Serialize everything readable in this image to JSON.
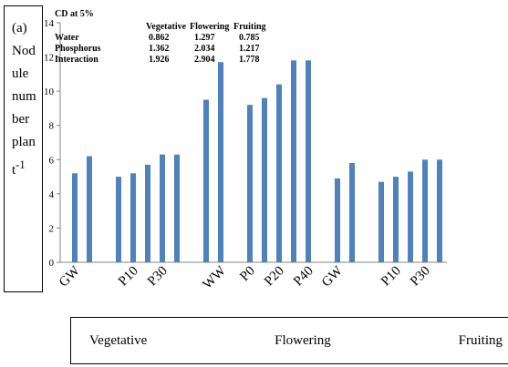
{
  "chart_data": {
    "type": "bar",
    "y_label": "(a) Nodule number plant",
    "y_label_sup": "-1",
    "categories": [
      "GW",
      null,
      null,
      null,
      "P10",
      null,
      "P30",
      null,
      null,
      null,
      "WW",
      null,
      "P0",
      null,
      "P20",
      null,
      "P40",
      null,
      "GW",
      null,
      null,
      null,
      "P10",
      null,
      "P30",
      null
    ],
    "values": [
      5.2,
      6.2,
      null,
      5.0,
      5.2,
      5.7,
      6.3,
      6.3,
      null,
      9.5,
      11.7,
      null,
      9.2,
      9.6,
      10.4,
      11.8,
      11.8,
      null,
      4.9,
      5.8,
      null,
      4.7,
      5.0,
      5.3,
      6.0,
      6.0
    ],
    "color": "#4f81bd",
    "ylim": [
      0,
      14
    ],
    "yticks": [
      0,
      2,
      4,
      6,
      8,
      10,
      12,
      14
    ],
    "stages": [
      "Vegetative",
      "Flowering",
      "Fruiting"
    ],
    "cd_table": {
      "title": "CD at 5%",
      "header": [
        "Vegetative",
        "Flowering",
        "Fruiting"
      ],
      "rows": [
        [
          "Water",
          "0.862",
          "1.297",
          "0.785"
        ],
        [
          "Phosphorus",
          "1.362",
          "2.034",
          "1.217"
        ],
        [
          "Interaction",
          "1.926",
          "2.904",
          "1.778"
        ]
      ]
    }
  }
}
